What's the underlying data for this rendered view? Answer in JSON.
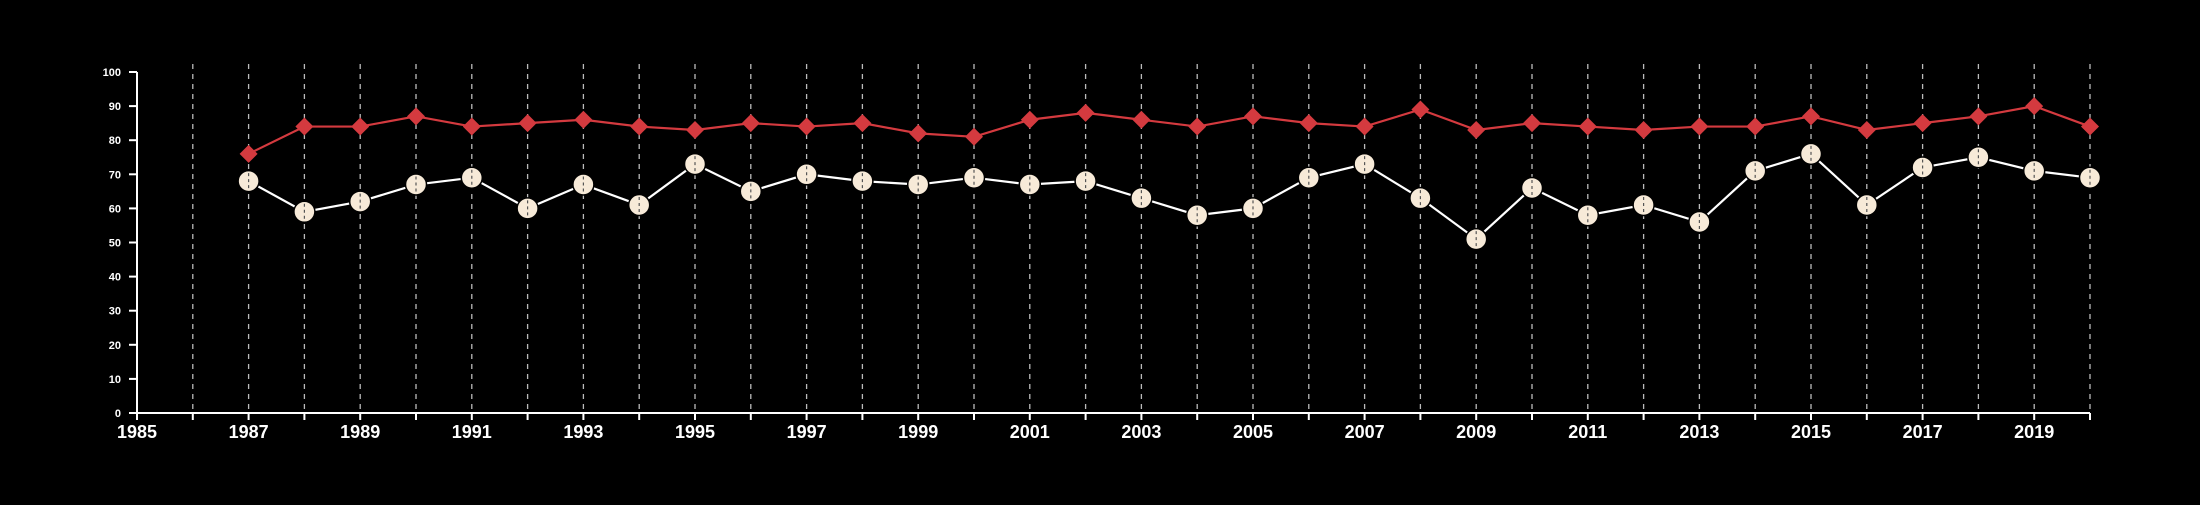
{
  "chart_data": {
    "type": "line",
    "title": "",
    "xlabel": "",
    "ylabel": "",
    "xlim": [
      1985,
      2020
    ],
    "ylim": [
      0,
      100
    ],
    "y_ticks": [
      0,
      10,
      20,
      30,
      40,
      50,
      60,
      70,
      80,
      90,
      100
    ],
    "x_tick_labels": [
      {
        "value": 1985,
        "label": "1985"
      },
      {
        "value": 1987,
        "label": "1987"
      },
      {
        "value": 1989,
        "label": "1989"
      },
      {
        "value": 1991,
        "label": "1991"
      },
      {
        "value": 1993,
        "label": "1993"
      },
      {
        "value": 1995,
        "label": "1995"
      },
      {
        "value": 1997,
        "label": "1997"
      },
      {
        "value": 1999,
        "label": "1999"
      },
      {
        "value": 2001,
        "label": "2001"
      },
      {
        "value": 2003,
        "label": "2003"
      },
      {
        "value": 2005,
        "label": "2005"
      },
      {
        "value": 2007,
        "label": "2007"
      },
      {
        "value": 2009,
        "label": "2009"
      },
      {
        "value": 2011,
        "label": "2011"
      },
      {
        "value": 2013,
        "label": "2013"
      },
      {
        "value": 2015,
        "label": "2015"
      },
      {
        "value": 2017,
        "label": "2017"
      },
      {
        "value": 2019,
        "label": "2019"
      }
    ],
    "grid": {
      "vertical": true,
      "horizontal": false,
      "style": "dashed",
      "every_year": true
    },
    "x": [
      1987,
      1988,
      1989,
      1990,
      1991,
      1992,
      1993,
      1994,
      1995,
      1996,
      1997,
      1998,
      1999,
      2000,
      2001,
      2002,
      2003,
      2004,
      2005,
      2006,
      2007,
      2008,
      2009,
      2010,
      2011,
      2012,
      2013,
      2014,
      2015,
      2016,
      2017,
      2018,
      2019,
      2020
    ],
    "series": [
      {
        "color": "#d43a3f",
        "marker": "diamond",
        "values": [
          76,
          84,
          84,
          87,
          84,
          85,
          86,
          84,
          83,
          85,
          84,
          85,
          82,
          81,
          86,
          88,
          86,
          84,
          87,
          85,
          84,
          89,
          83,
          85,
          84,
          83,
          84,
          84,
          87,
          83,
          85,
          87,
          90,
          84
        ]
      },
      {
        "color": "#ffffff",
        "marker": "circle",
        "marker_fill": "#f7ead8",
        "values": [
          68,
          59,
          62,
          67,
          69,
          60,
          67,
          61,
          73,
          65,
          70,
          68,
          67,
          69,
          67,
          68,
          63,
          58,
          60,
          69,
          73,
          63,
          51,
          66,
          58,
          61,
          56,
          71,
          76,
          61,
          72,
          75,
          71,
          69
        ]
      }
    ],
    "legend": "none",
    "colors": {
      "background": "#000000",
      "axis": "#ffffff",
      "grid": "#bbbbbb"
    }
  }
}
